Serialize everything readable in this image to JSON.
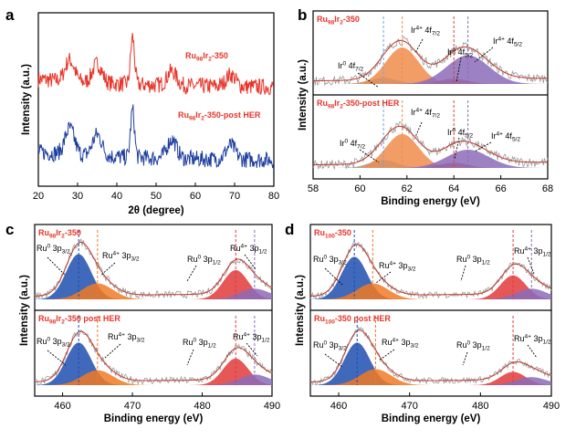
{
  "figure": {
    "panel_letters": [
      "a",
      "b",
      "c",
      "d"
    ]
  },
  "chart_data": [
    {
      "id": "a",
      "type": "line",
      "title": "",
      "xlabel": "2θ (degree)",
      "ylabel": "Intensity (a.u.)",
      "xlim": [
        20,
        80
      ],
      "xticks": [
        20,
        30,
        40,
        50,
        60,
        70,
        80
      ],
      "series": [
        {
          "name": "Ru98Ir2-350",
          "label_main": "Ru",
          "label_sub1": "98",
          "label_mid": "Ir",
          "label_sub2": "2",
          "label_tail": "-350",
          "color": "#e8352a",
          "peaks": [
            {
              "x": 28.0,
              "h": 0.45
            },
            {
              "x": 35.0,
              "h": 0.4
            },
            {
              "x": 44.0,
              "h": 1.0
            },
            {
              "x": 54.0,
              "h": 0.3
            },
            {
              "x": 69.0,
              "h": 0.25
            }
          ]
        },
        {
          "name": "Ru98Ir2-350-post HER",
          "label_main": "Ru",
          "label_sub1": "98",
          "label_mid": "Ir",
          "label_sub2": "2",
          "label_tail": "-350-post HER",
          "color": "#1f3fa0",
          "peaks": [
            {
              "x": 28.0,
              "h": 0.55
            },
            {
              "x": 35.0,
              "h": 0.45
            },
            {
              "x": 44.0,
              "h": 1.0
            },
            {
              "x": 54.0,
              "h": 0.4
            },
            {
              "x": 69.0,
              "h": 0.3
            }
          ]
        }
      ]
    },
    {
      "id": "b",
      "type": "line",
      "xlabel": "Binding energy (eV)",
      "ylabel": "Intensity (a.u.)",
      "xlim": [
        58,
        68
      ],
      "xticks": [
        58,
        60,
        62,
        64,
        66,
        68
      ],
      "subpanels": [
        {
          "title": "Ru98Ir2-350",
          "t_main": "Ru",
          "t_s1": "98",
          "t_mid": "Ir",
          "t_s2": "2",
          "t_tail": "-350",
          "components": [
            {
              "name": "Ir0 4f7/2",
              "center": 61.0,
              "height": 0.12,
              "width": 0.6,
              "color": "#6aa7e0"
            },
            {
              "name": "Ir4+ 4f7/2",
              "center": 61.8,
              "height": 0.7,
              "width": 0.7,
              "color": "#f08c4a"
            },
            {
              "name": "Ir0 4f5/2",
              "center": 64.0,
              "height": 0.1,
              "width": 0.6,
              "color": "#e23a3a"
            },
            {
              "name": "Ir4+ 4f5/2",
              "center": 64.6,
              "height": 0.55,
              "width": 0.9,
              "color": "#8b6bb8"
            }
          ]
        },
        {
          "title": "Ru98Ir2-350-post HER",
          "t_main": "Ru",
          "t_s1": "98",
          "t_mid": "Ir",
          "t_s2": "2",
          "t_tail": "-350-post HER",
          "components": [
            {
              "name": "Ir0 4f7/2",
              "center": 61.0,
              "height": 0.15,
              "width": 0.6,
              "color": "#6aa7e0"
            },
            {
              "name": "Ir4+ 4f7/2",
              "center": 61.8,
              "height": 0.65,
              "width": 0.7,
              "color": "#f08c4a"
            },
            {
              "name": "Ir0 4f5/2",
              "center": 64.0,
              "height": 0.1,
              "width": 0.6,
              "color": "#e23a3a"
            },
            {
              "name": "Ir4+ 4f5/2",
              "center": 64.6,
              "height": 0.35,
              "width": 0.9,
              "color": "#8b6bb8"
            }
          ]
        }
      ],
      "labels": [
        {
          "base": "Ir",
          "sup": "0",
          "rest": " 4f",
          "sub": "7/2"
        },
        {
          "base": "Ir",
          "sup": "4+",
          "rest": " 4f",
          "sub": "7/2"
        },
        {
          "base": "Ir",
          "sup": "0",
          "rest": " 4f",
          "sub": "5/2"
        },
        {
          "base": "Ir",
          "sup": "4+",
          "rest": " 4f",
          "sub": "5/2"
        }
      ]
    },
    {
      "id": "c",
      "type": "line",
      "xlabel": "Binding energy (eV)",
      "ylabel": "Intensity (a.u.)",
      "xlim": [
        456,
        490
      ],
      "xticks": [
        460,
        470,
        480,
        490
      ],
      "subpanels": [
        {
          "title": "Ru98Ir2-350",
          "t_main": "Ru",
          "t_s1": "98",
          "t_mid": "Ir",
          "t_s2": "2",
          "t_tail": "-350",
          "components": [
            {
              "name": "Ru0 3p3/2",
              "center": 462.3,
              "height": 0.85,
              "width": 1.8,
              "color": "#1f4fb0"
            },
            {
              "name": "Ru4+ 3p3/2",
              "center": 465.0,
              "height": 0.3,
              "width": 2.2,
              "color": "#f07a25"
            },
            {
              "name": "Ru0 3p1/2",
              "center": 484.8,
              "height": 0.55,
              "width": 1.8,
              "color": "#e23a3a"
            },
            {
              "name": "Ru4+ 3p1/2",
              "center": 487.5,
              "height": 0.2,
              "width": 2.2,
              "color": "#8b6bb8"
            }
          ]
        },
        {
          "title": "Ru98Ir2-350 post HER",
          "t_main": "Ru",
          "t_s1": "98",
          "t_mid": "Ir",
          "t_s2": "2",
          "t_tail": "-350 post HER",
          "components": [
            {
              "name": "Ru0 3p3/2",
              "center": 462.3,
              "height": 0.8,
              "width": 1.8,
              "color": "#1f4fb0"
            },
            {
              "name": "Ru4+ 3p3/2",
              "center": 465.0,
              "height": 0.28,
              "width": 2.2,
              "color": "#f07a25"
            },
            {
              "name": "Ru0 3p1/2",
              "center": 484.8,
              "height": 0.5,
              "width": 1.8,
              "color": "#e23a3a"
            },
            {
              "name": "Ru4+ 3p1/2",
              "center": 487.5,
              "height": 0.2,
              "width": 2.2,
              "color": "#8b6bb8"
            }
          ]
        }
      ],
      "labels": [
        {
          "base": "Ru",
          "sup": "0",
          "rest": " 3p",
          "sub": "3/2"
        },
        {
          "base": "Ru",
          "sup": "4+",
          "rest": " 3p",
          "sub": "3/2"
        },
        {
          "base": "Ru",
          "sup": "0",
          "rest": " 3p",
          "sub": "1/2"
        },
        {
          "base": "Ru",
          "sup": "4+",
          "rest": " 3p",
          "sub": "1/2"
        }
      ]
    },
    {
      "id": "d",
      "type": "line",
      "xlabel": "Binding energy (eV)",
      "ylabel": "Intensity (a.u.)",
      "xlim": [
        456,
        490
      ],
      "xticks": [
        460,
        470,
        480,
        490
      ],
      "subpanels": [
        {
          "title": "Ru100-350",
          "t_main": "Ru",
          "t_s1": "100",
          "t_mid": "",
          "t_s2": "",
          "t_tail": "-350",
          "components": [
            {
              "name": "Ru0 3p3/2",
              "center": 462.2,
              "height": 0.8,
              "width": 1.8,
              "color": "#1f4fb0"
            },
            {
              "name": "Ru4+ 3p3/2",
              "center": 464.8,
              "height": 0.3,
              "width": 2.2,
              "color": "#f07a25"
            },
            {
              "name": "Ru0 3p1/2",
              "center": 484.6,
              "height": 0.45,
              "width": 1.8,
              "color": "#e23a3a"
            },
            {
              "name": "Ru4+ 3p1/2",
              "center": 487.2,
              "height": 0.2,
              "width": 2.2,
              "color": "#8b6bb8"
            }
          ]
        },
        {
          "title": "Ru100-350 post HER",
          "t_main": "Ru",
          "t_s1": "100",
          "t_mid": "",
          "t_s2": "",
          "t_tail": "-350 post HER",
          "components": [
            {
              "name": "Ru0 3p3/2",
              "center": 462.6,
              "height": 0.8,
              "width": 1.8,
              "color": "#1f4fb0"
            },
            {
              "name": "Ru4+ 3p3/2",
              "center": 465.2,
              "height": 0.3,
              "width": 2.2,
              "color": "#f07a25"
            },
            {
              "name": "Ru0 3p1/2",
              "center": 484.6,
              "height": 0.25,
              "width": 1.8,
              "color": "#e23a3a"
            },
            {
              "name": "Ru4+ 3p1/2",
              "center": 487.2,
              "height": 0.15,
              "width": 2.2,
              "color": "#8b6bb8"
            }
          ]
        }
      ],
      "labels": [
        {
          "base": "Ru",
          "sup": "0",
          "rest": " 3p",
          "sub": "3/2"
        },
        {
          "base": "Ru",
          "sup": "4+",
          "rest": " 3p",
          "sub": "3/2"
        },
        {
          "base": "Ru",
          "sup": "0",
          "rest": " 3p",
          "sub": "1/2"
        },
        {
          "base": "Ru",
          "sup": "4+",
          "rest": " 3p",
          "sub": "1/2"
        }
      ]
    }
  ]
}
